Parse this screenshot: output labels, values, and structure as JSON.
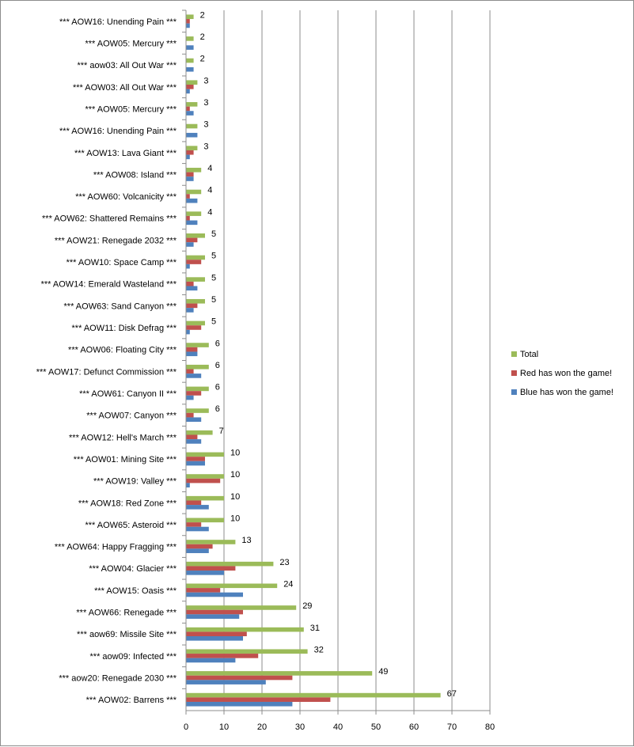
{
  "chart_data": {
    "type": "bar",
    "orientation": "horizontal",
    "title": "",
    "xlabel": "",
    "ylabel": "",
    "xlim": [
      0,
      80
    ],
    "x_ticks": [
      0,
      10,
      20,
      30,
      40,
      50,
      60,
      70,
      80
    ],
    "grid": "vertical major gridlines",
    "legend_position": "right",
    "categories": [
      "*** AOW16: Unending Pain ***",
      "*** AOW05: Mercury ***",
      "*** aow03: All Out War ***",
      "*** AOW03: All Out War ***",
      "*** AOW05: Mercury ***",
      "*** AOW16: Unending Pain ***",
      "*** AOW13: Lava Giant ***",
      "*** AOW08: Island ***",
      "*** AOW60: Volcanicity ***",
      "*** AOW62: Shattered Remains ***",
      "*** AOW21: Renegade 2032 ***",
      "*** AOW10: Space Camp ***",
      "*** AOW14: Emerald Wasteland ***",
      "*** AOW63: Sand Canyon ***",
      "*** AOW11: Disk Defrag ***",
      "*** AOW06: Floating City ***",
      "*** AOW17: Defunct Commission ***",
      "*** AOW61: Canyon II ***",
      "*** AOW07: Canyon ***",
      "*** AOW12: Hell's March ***",
      "*** AOW01: Mining Site ***",
      "*** AOW19: Valley ***",
      "*** AOW18: Red Zone ***",
      "*** AOW65: Asteroid ***",
      "*** AOW64: Happy Fragging ***",
      "*** AOW04: Glacier ***",
      "*** AOW15: Oasis ***",
      "*** AOW66: Renegade ***",
      "*** aow69: Missile Site ***",
      "*** aow09: Infected ***",
      "*** aow20: Renegade 2030 ***",
      "*** AOW02: Barrens ***"
    ],
    "series": [
      {
        "name": "Total",
        "color": "#9BBB59",
        "values": [
          2,
          2,
          2,
          3,
          3,
          3,
          3,
          4,
          4,
          4,
          5,
          5,
          5,
          5,
          5,
          6,
          6,
          6,
          6,
          7,
          10,
          10,
          10,
          10,
          13,
          23,
          24,
          29,
          31,
          32,
          49,
          67
        ],
        "labels_shown": true
      },
      {
        "name": "Red has won the game!",
        "color": "#C0504D",
        "values": [
          1,
          0,
          0,
          2,
          1,
          0,
          2,
          2,
          1,
          1,
          3,
          4,
          2,
          3,
          4,
          3,
          2,
          4,
          2,
          3,
          5,
          9,
          4,
          4,
          7,
          13,
          9,
          15,
          16,
          19,
          28,
          38
        ]
      },
      {
        "name": "Blue has won the game!",
        "color": "#4F81BD",
        "values": [
          1,
          2,
          2,
          1,
          2,
          3,
          1,
          2,
          3,
          3,
          2,
          1,
          3,
          2,
          1,
          3,
          4,
          2,
          4,
          4,
          5,
          1,
          6,
          6,
          6,
          10,
          15,
          14,
          15,
          13,
          21,
          28
        ]
      }
    ]
  }
}
